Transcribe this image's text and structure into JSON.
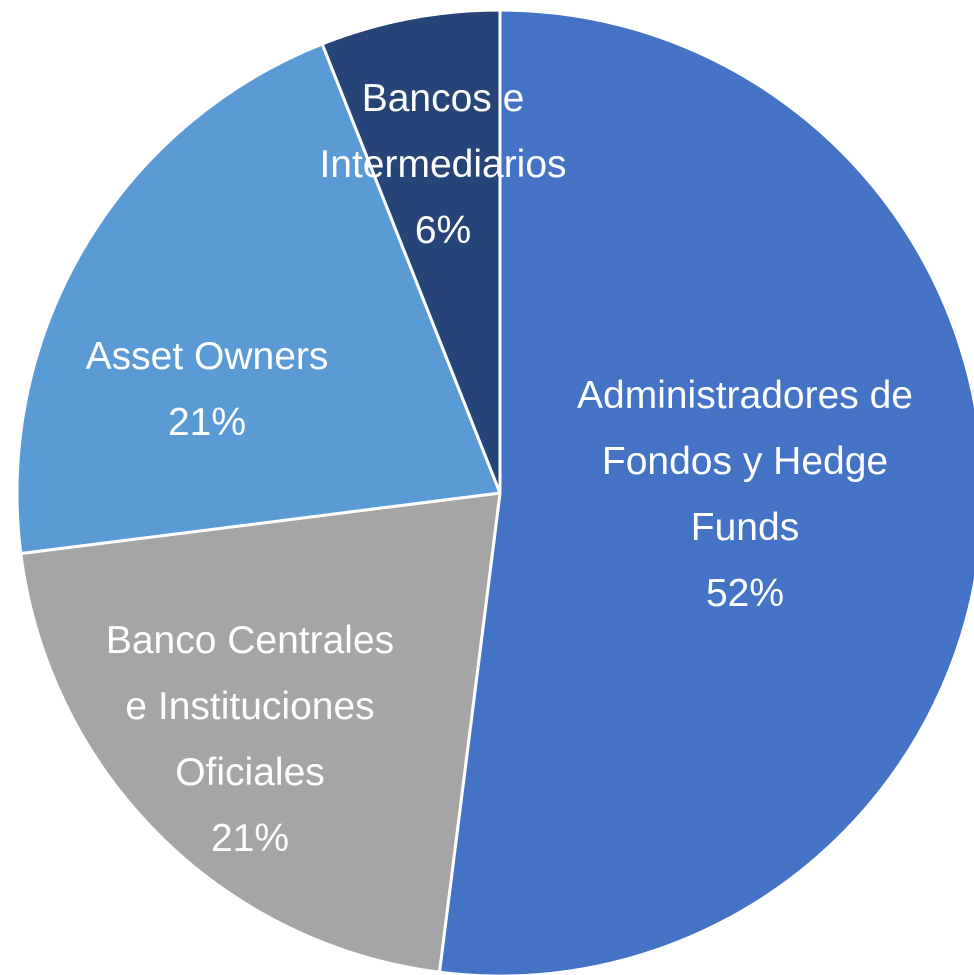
{
  "chart_data": {
    "type": "pie",
    "categories": [
      "Administradores de Fondos y Hedge Funds",
      "Banco Centrales e Instituciones Oficiales",
      "Asset Owners",
      "Bancos e Intermediarios"
    ],
    "values": [
      52,
      21,
      21,
      6
    ],
    "value_labels": [
      "52%",
      "21%",
      "21%",
      "6%"
    ],
    "colors": [
      "#4472c4",
      "#a5a5a5",
      "#5b9bd5",
      "#264478"
    ]
  }
}
